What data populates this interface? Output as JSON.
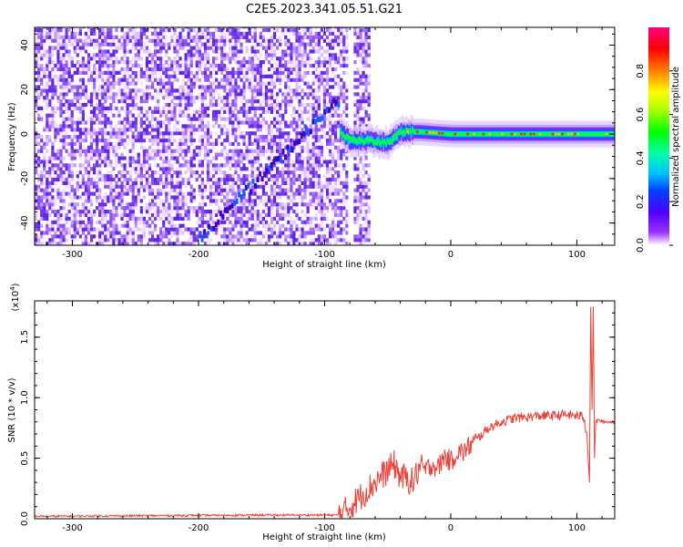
{
  "title": "C2E5.2023.341.05.51.G21",
  "chart_data": [
    {
      "type": "heatmap",
      "xlabel": "Height of straight line (km)",
      "ylabel": "Frequency (Hz)",
      "xlim": [
        -330,
        130
      ],
      "ylim": [
        -50,
        48
      ],
      "x_ticks": [
        -300,
        -200,
        -100,
        0,
        100
      ],
      "y_ticks": [
        -40,
        -20,
        0,
        20,
        40
      ],
      "colorbar": {
        "label": "Normalized spectral amplitude",
        "range": [
          0.0,
          1.0
        ],
        "ticks": [
          "0.0",
          "0.2",
          "0.4",
          "0.6",
          "0.8"
        ],
        "tick_values": [
          0.0,
          0.2,
          0.4,
          0.6,
          0.8
        ]
      },
      "noise_region": {
        "x_range": [
          -330,
          -65
        ],
        "gap": [
          -83,
          -78
        ],
        "amplitude": 0.12
      },
      "drifting_feature": {
        "x_range": [
          -200,
          -90
        ],
        "freq_range": [
          -47,
          15
        ]
      },
      "signal_track": [
        {
          "x": -88,
          "freq": 1,
          "amplitude": 0.45
        },
        {
          "x": -80,
          "freq": -3,
          "amplitude": 0.5
        },
        {
          "x": -65,
          "freq": -3,
          "amplitude": 0.5
        },
        {
          "x": -50,
          "freq": -4,
          "amplitude": 0.5
        },
        {
          "x": -40,
          "freq": 1,
          "amplitude": 0.65
        },
        {
          "x": -25,
          "freq": 1,
          "amplitude": 0.7
        },
        {
          "x": 0,
          "freq": 0,
          "amplitude": 0.85
        },
        {
          "x": 50,
          "freq": 0,
          "amplitude": 0.85
        },
        {
          "x": 100,
          "freq": 0,
          "amplitude": 0.85
        },
        {
          "x": 130,
          "freq": 0,
          "amplitude": 0.7
        }
      ]
    },
    {
      "type": "line",
      "xlabel": "Height of straight line (km)",
      "ylabel": "SNR (10 * v/v)",
      "y_multiplier": "(x10",
      "y_multiplier_exp": "4",
      "y_multiplier_close": ")",
      "xlim": [
        -330,
        130
      ],
      "ylim": [
        0,
        1.8
      ],
      "x_ticks": [
        -300,
        -200,
        -100,
        0,
        100
      ],
      "y_ticks": [
        "0.0",
        "0.5",
        "1.0",
        "1.5"
      ],
      "y_tick_values": [
        0.0,
        0.5,
        1.0,
        1.5
      ],
      "color": "#e8423a",
      "series": [
        {
          "x": [
            -330,
            -150,
            -90,
            -85,
            -75,
            -70,
            -65,
            -60,
            -55,
            -50,
            -45,
            -40,
            -35,
            -30,
            -25,
            -20,
            -15,
            -10,
            -5,
            0,
            5,
            10,
            15,
            20,
            25,
            30,
            40,
            50,
            60,
            70,
            80,
            90,
            100,
            105,
            108,
            110,
            111,
            112,
            113,
            114,
            115,
            118,
            120,
            130
          ],
          "y": [
            0.02,
            0.03,
            0.03,
            0.05,
            0.15,
            0.2,
            0.25,
            0.3,
            0.35,
            0.4,
            0.45,
            0.35,
            0.33,
            0.3,
            0.42,
            0.4,
            0.45,
            0.42,
            0.52,
            0.47,
            0.55,
            0.55,
            0.6,
            0.65,
            0.7,
            0.75,
            0.8,
            0.83,
            0.84,
            0.85,
            0.85,
            0.86,
            0.85,
            0.85,
            0.7,
            0.3,
            1.75,
            0.9,
            1.75,
            0.5,
            0.8,
            0.82,
            0.8,
            0.8
          ]
        }
      ]
    }
  ]
}
